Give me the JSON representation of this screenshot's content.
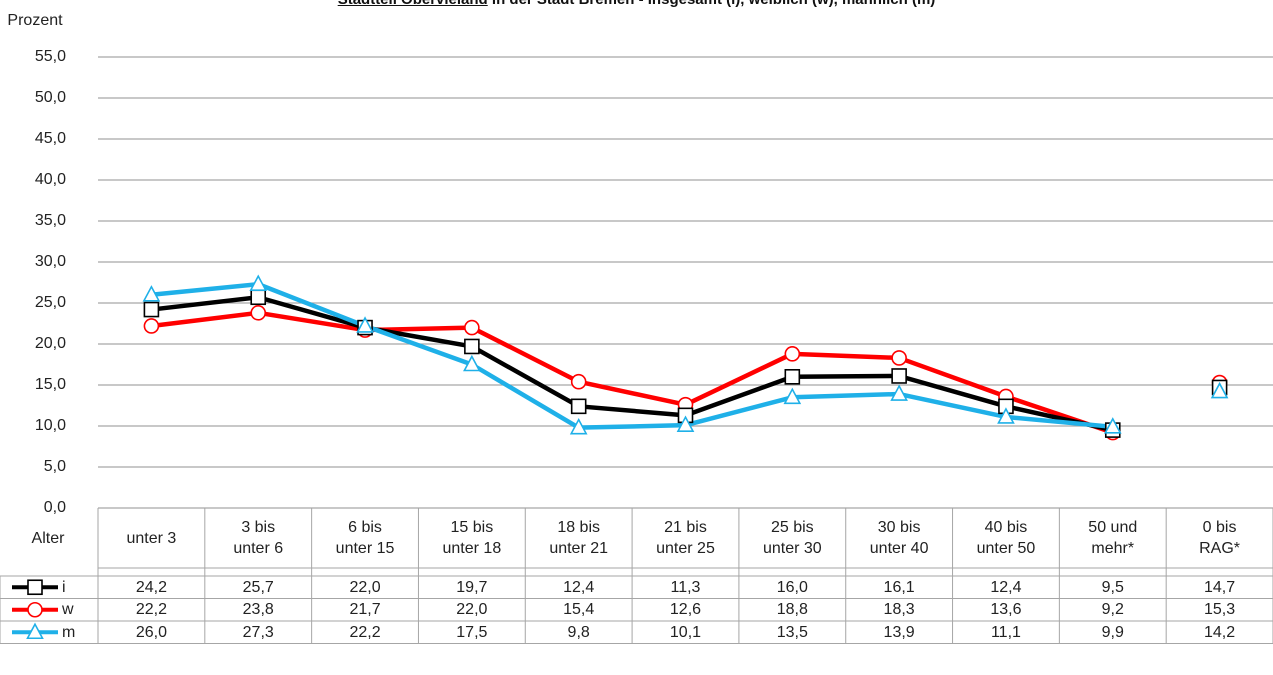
{
  "chart_data": {
    "type": "line",
    "title_underlined": "Stadtteil Obervieland",
    "title": "in der Stadt Bremen - Insgesamt (i), weiblich (w), männlich (m)",
    "y_label": "Prozent",
    "x_label": "Alter",
    "categories": [
      "unter 3",
      "3 bis\nunter 6",
      "6 bis\nunter 15",
      "15 bis\nunter 18",
      "18 bis\nunter 21",
      "21 bis\nunter 25",
      "25 bis\nunter 30",
      "30 bis\nunter 40",
      "40 bis\nunter 50",
      "50 und\nmehr*",
      "0 bis\nRAG*"
    ],
    "series": [
      {
        "name": "i",
        "color": "#000000",
        "marker": "square",
        "values": [
          24.2,
          25.7,
          22.0,
          19.7,
          12.4,
          11.3,
          16.0,
          16.1,
          12.4,
          9.5,
          14.7
        ],
        "value_labels": [
          "24,2",
          "25,7",
          "22,0",
          "19,7",
          "12,4",
          "11,3",
          "16,0",
          "16,1",
          "12,4",
          "9,5",
          "14,7"
        ]
      },
      {
        "name": "w",
        "color": "#ff0000",
        "marker": "circle",
        "values": [
          22.2,
          23.8,
          21.7,
          22.0,
          15.4,
          12.6,
          18.8,
          18.3,
          13.6,
          9.2,
          15.3
        ],
        "value_labels": [
          "22,2",
          "23,8",
          "21,7",
          "22,0",
          "15,4",
          "12,6",
          "18,8",
          "18,3",
          "13,6",
          "9,2",
          "15,3"
        ]
      },
      {
        "name": "m",
        "color": "#1fb0e8",
        "marker": "triangle",
        "values": [
          26.0,
          27.3,
          22.2,
          17.5,
          9.8,
          10.1,
          13.5,
          13.9,
          11.1,
          9.9,
          14.2
        ],
        "value_labels": [
          "26,0",
          "27,3",
          "22,2",
          "17,5",
          "9,8",
          "10,1",
          "13,5",
          "13,9",
          "11,1",
          "9,9",
          "14,2"
        ]
      }
    ],
    "separate_last_point": true,
    "ylim": [
      0,
      55
    ],
    "yticks": [
      {
        "value": 0,
        "label": "0,0"
      },
      {
        "value": 5,
        "label": "5,0"
      },
      {
        "value": 10,
        "label": "10,0"
      },
      {
        "value": 15,
        "label": "15,0"
      },
      {
        "value": 20,
        "label": "20,0"
      },
      {
        "value": 25,
        "label": "25,0"
      },
      {
        "value": 30,
        "label": "30,0"
      },
      {
        "value": 35,
        "label": "35,0"
      },
      {
        "value": 40,
        "label": "40,0"
      },
      {
        "value": 45,
        "label": "45,0"
      },
      {
        "value": 50,
        "label": "50,0"
      },
      {
        "value": 55,
        "label": "55,0"
      }
    ],
    "grid": true
  }
}
